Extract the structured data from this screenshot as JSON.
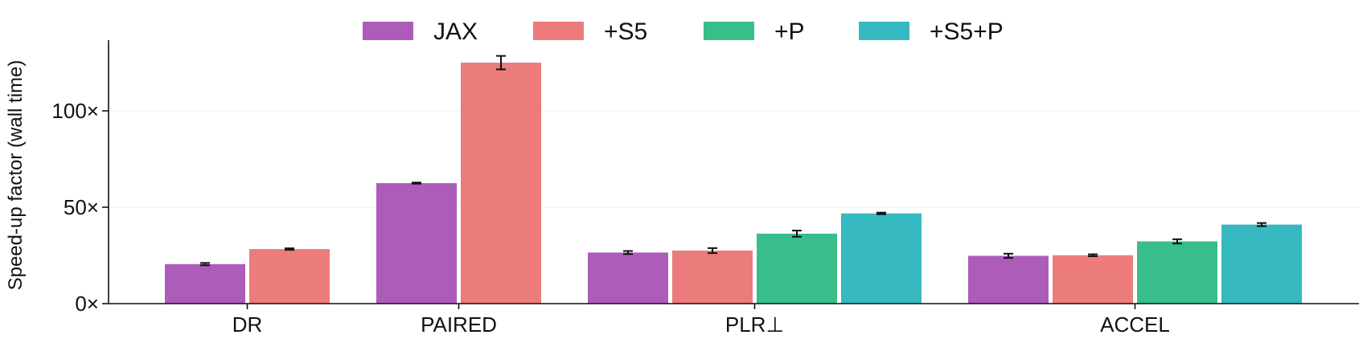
{
  "chart_data": {
    "type": "bar",
    "categories": [
      "DR",
      "PAIRED",
      "PLR⊥",
      "ACCEL"
    ],
    "series": [
      {
        "name": "JAX",
        "color": "#ad5cba",
        "values": [
          20.5,
          62.5,
          26.5,
          24.8
        ],
        "errors": [
          0.6,
          0.3,
          0.8,
          1.1
        ]
      },
      {
        "name": "+S5",
        "color": "#ec7b7b",
        "values": [
          28.3,
          125,
          27.5,
          25.1
        ],
        "errors": [
          0.4,
          3.5,
          1.3,
          0.5
        ]
      },
      {
        "name": "+P",
        "color": "#38be8b",
        "values": [
          null,
          null,
          36.3,
          32.3
        ],
        "errors": [
          null,
          null,
          1.6,
          1.1
        ]
      },
      {
        "name": "+S5+P",
        "color": "#37b9c1",
        "values": [
          null,
          null,
          46.8,
          41.0
        ],
        "errors": [
          null,
          null,
          0.4,
          0.8
        ]
      }
    ],
    "ylabel": "Speed-up factor (wall time)",
    "yticks": [
      0,
      50,
      100
    ],
    "ytick_labels": [
      "0×",
      "50×",
      "100×"
    ],
    "ylim": [
      0,
      137
    ],
    "grid": "horizontal, light",
    "legend_position": "top-center"
  }
}
